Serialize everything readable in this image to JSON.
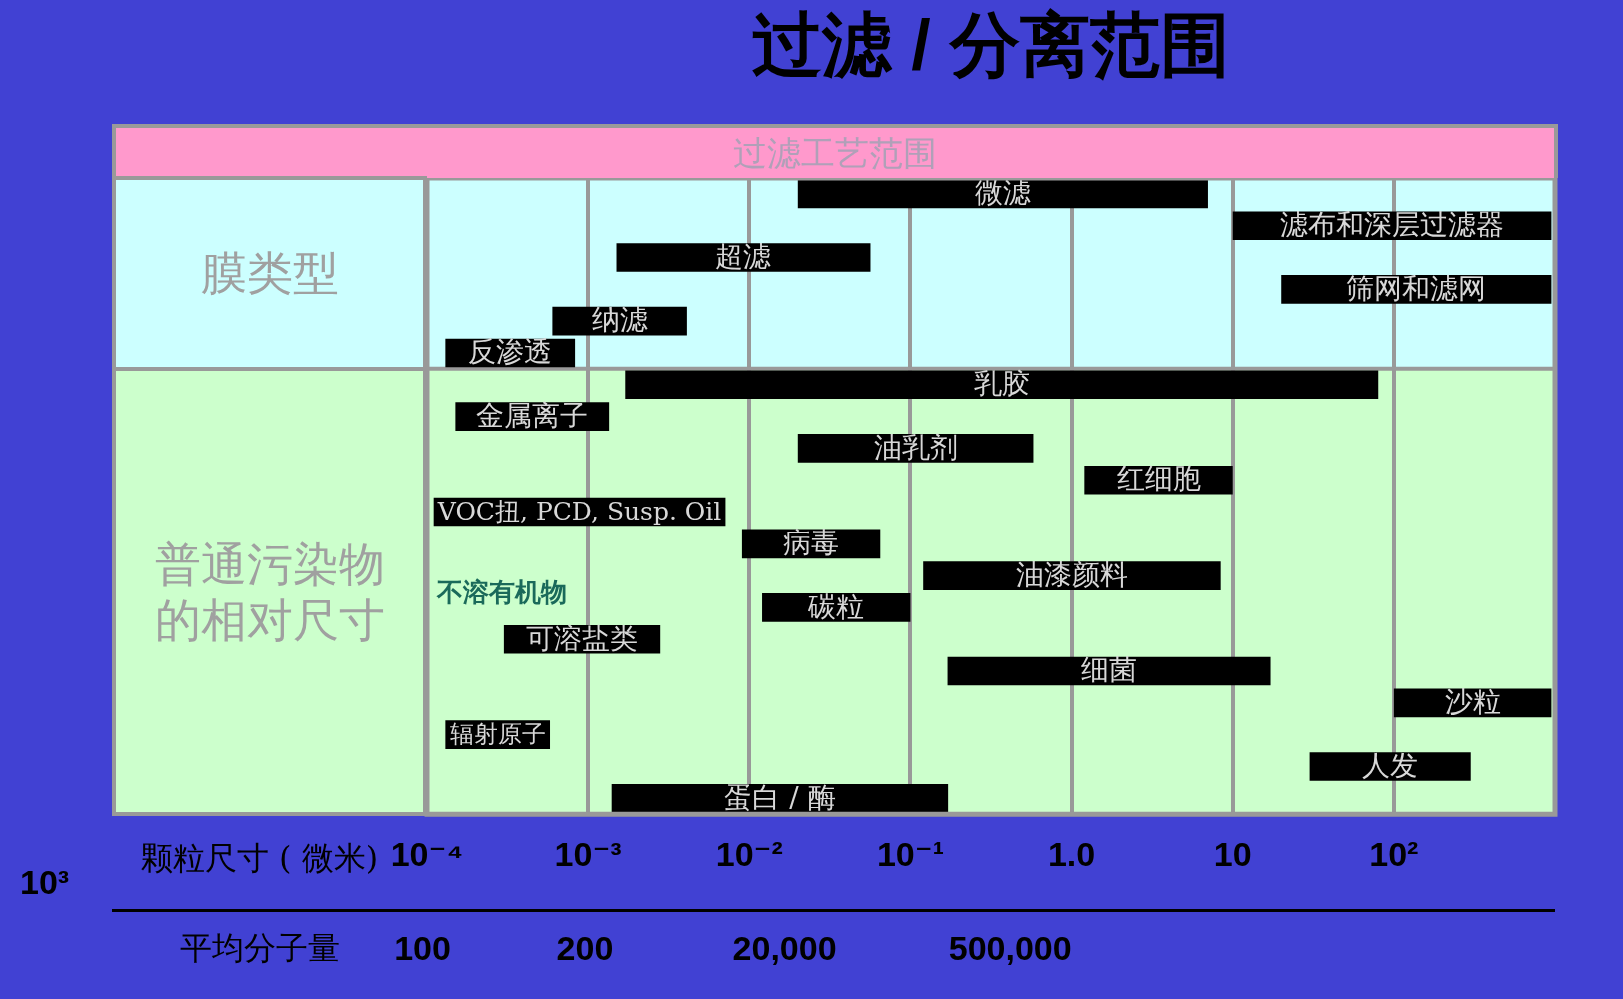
{
  "chart_data": {
    "type": "bar",
    "orientation": "horizontal",
    "title": "过滤 / 分离范围",
    "subtitle": "过滤工艺范围",
    "xlabel": "颗粒尺寸 ( 微米)",
    "categories": [
      "微滤",
      "滤布和深层过滤器",
      "超滤",
      "筛网和滤网",
      "纳滤",
      "反渗透",
      "乳胶",
      "金属离子",
      "油乳剂",
      "红细胞",
      "VOC扭, PCD, Susp. Oil",
      "病毒",
      "油漆颜料",
      "碳粒",
      "可溶盐类",
      "细菌",
      "沙粒",
      "辐射原子",
      "人发",
      "蛋白 / 酶"
    ],
    "series": [
      {
        "color": "#000000",
        "base": [
          0.02,
          10,
          0.0015,
          20,
          0.0006,
          0.00013,
          0.0017,
          0.00015,
          0.02,
          1.2,
          0.00011,
          0.009,
          0.12,
          0.012,
          0.0003,
          0.17,
          100,
          0.00013,
          30,
          0.0014
        ],
        "values": [
          7,
          940,
          0.055,
          930,
          0.0035,
          0.0007,
          80,
          0.0012,
          0.56,
          8.8,
          0.007,
          0.056,
          8.3,
          0.088,
          0.0025,
          17,
          850,
          0.00045,
          270,
          0.17
        ]
      }
    ],
    "log": "x",
    "xlim": [
      0.0001,
      1000
    ],
    "xticks": [
      {
        "value": 0.0001,
        "label": "10⁻⁴"
      },
      {
        "value": 0.001,
        "label": "10⁻³"
      },
      {
        "value": 0.01,
        "label": "10⁻²"
      },
      {
        "value": 0.1,
        "label": "10⁻¹"
      },
      {
        "value": 1,
        "label": "1.0"
      },
      10,
      {
        "value": 100,
        "label": "10²"
      }
    ],
    "bands": [
      {
        "axis": "y",
        "from": "微滤",
        "to": "反渗透",
        "label": "膜类型",
        "color": "#ccffff"
      },
      {
        "axis": "y",
        "from": "乳胶",
        "to": "蛋白 / 酶",
        "label": "普通污染物的相对尺寸",
        "color": "#ccffcc"
      }
    ],
    "annotations": [
      "不溶有机物",
      "10³",
      "平均分子量",
      "100",
      "200",
      "20,000",
      "500,000"
    ],
    "grid": "x",
    "tick_labels": "x",
    "legend": false
  }
}
